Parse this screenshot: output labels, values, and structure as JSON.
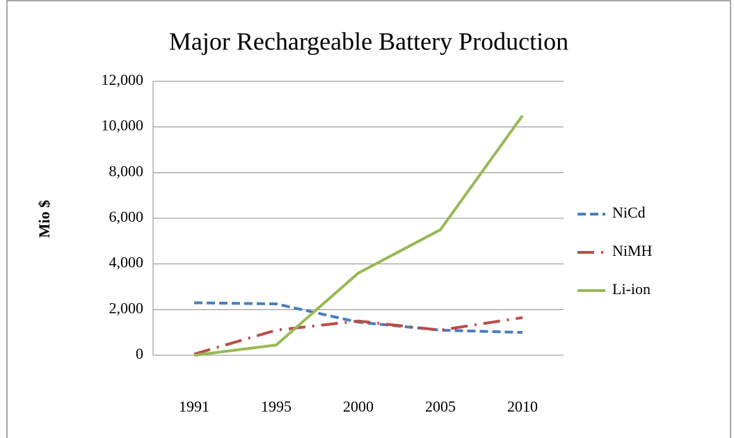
{
  "chart_data": {
    "type": "line",
    "title": "Major Rechargeable Battery Production",
    "y_label": "Mio $",
    "categories": [
      "1991",
      "1995",
      "2000",
      "2005",
      "2010"
    ],
    "series": [
      {
        "name": "NiCd",
        "color": "#4a7ebb",
        "line_style": "dashed",
        "values": [
          2300,
          2250,
          1450,
          1100,
          1000
        ]
      },
      {
        "name": "NiMH",
        "color": "#be4b48",
        "line_style": "dashdot",
        "values": [
          50,
          1100,
          1500,
          1100,
          1650
        ]
      },
      {
        "name": "Li-ion",
        "color": "#98b954",
        "line_style": "solid",
        "values": [
          0,
          450,
          3600,
          5500,
          10500
        ]
      }
    ],
    "ylim": [
      0,
      12000
    ],
    "yticks": [
      0,
      {
        "value": 2000,
        "label": "2,000"
      },
      {
        "value": 4000,
        "label": "4,000"
      },
      {
        "value": 6000,
        "label": "6,000"
      },
      {
        "value": 8000,
        "label": "8,000"
      },
      {
        "value": 10000,
        "label": "10,000"
      },
      {
        "value": 12000,
        "label": "12,000"
      }
    ],
    "grid": true,
    "legend": "right"
  }
}
